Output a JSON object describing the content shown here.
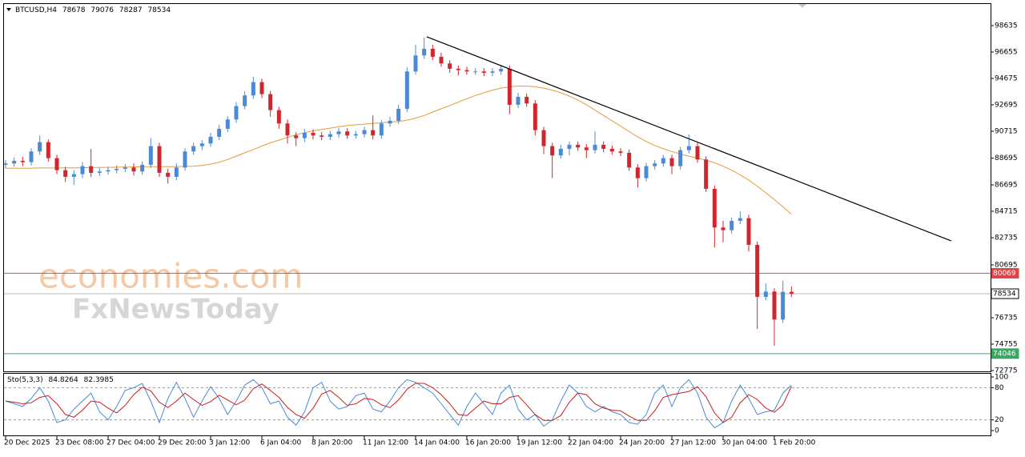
{
  "chart_data": [
    {
      "type": "candlestick",
      "title": "BTCUSD,H4",
      "watermark": [
        "economies.com",
        "FxNewsToday"
      ],
      "categories": [
        "20 Dec 2025",
        null,
        null,
        null,
        null,
        null,
        "23 Dec 08:00",
        null,
        null,
        null,
        null,
        null,
        "27 Dec 04:00",
        null,
        null,
        null,
        null,
        null,
        "29 Dec 20:00",
        null,
        null,
        null,
        null,
        null,
        "3 Jan 12:00",
        null,
        null,
        null,
        null,
        null,
        "6 Jan 04:00",
        null,
        null,
        null,
        null,
        null,
        "8 Jan 20:00",
        null,
        null,
        null,
        null,
        null,
        "11 Jan 12:00",
        null,
        null,
        null,
        null,
        null,
        "14 Jan 04:00",
        null,
        null,
        null,
        null,
        null,
        "16 Jan 20:00",
        null,
        null,
        null,
        null,
        null,
        "19 Jan 12:00",
        null,
        null,
        null,
        null,
        null,
        "22 Jan 04:00",
        null,
        null,
        null,
        null,
        null,
        "24 Jan 20:00",
        null,
        null,
        null,
        null,
        null,
        "27 Jan 12:00",
        null,
        null,
        null,
        null,
        null,
        "30 Jan 04:00",
        null,
        null,
        null,
        null,
        null,
        "1 Feb 20:00",
        null,
        null
      ],
      "open": [
        88200,
        88300,
        88500,
        88400,
        89200,
        89900,
        88700,
        87800,
        87300,
        87500,
        88100,
        87600,
        87700,
        87800,
        87900,
        88000,
        87700,
        88200,
        89600,
        87600,
        87300,
        88000,
        89200,
        89600,
        89800,
        90300,
        90900,
        91600,
        92600,
        93400,
        94400,
        93500,
        92300,
        91300,
        90400,
        90200,
        90600,
        90400,
        90300,
        90500,
        90700,
        90400,
        90500,
        90800,
        90400,
        91300,
        91500,
        92400,
        95200,
        96400,
        96900,
        96300,
        95800,
        95400,
        95300,
        95200,
        95200,
        95100,
        95200,
        95400,
        92700,
        93300,
        92800,
        90800,
        89600,
        88900,
        89400,
        89700,
        89500,
        89300,
        89700,
        89400,
        89200,
        89100,
        88000,
        87200,
        88100,
        88300,
        88700,
        88100,
        89300,
        89600,
        88600,
        86400,
        83500,
        83300,
        84000,
        84200,
        82200,
        78300,
        78700,
        76600,
        78678
      ],
      "high": [
        88550,
        88750,
        88800,
        89450,
        90400,
        90100,
        88950,
        88050,
        87800,
        88400,
        89400,
        87950,
        88050,
        88150,
        88250,
        88300,
        88450,
        90200,
        89850,
        87900,
        88300,
        89450,
        89850,
        90050,
        90600,
        91200,
        91850,
        92900,
        93700,
        94800,
        94650,
        93750,
        92550,
        91600,
        90650,
        90900,
        90850,
        90650,
        90750,
        90950,
        90950,
        90750,
        91050,
        91900,
        91550,
        91800,
        92700,
        95500,
        97200,
        97735,
        97200,
        96600,
        96050,
        95650,
        95550,
        95450,
        95450,
        95450,
        95700,
        95650,
        93600,
        93550,
        93050,
        91050,
        89850,
        89700,
        89950,
        89950,
        89750,
        90700,
        89950,
        89650,
        89450,
        89350,
        88250,
        88350,
        88550,
        88950,
        88950,
        89550,
        90475,
        89850,
        88850,
        86650,
        84000,
        84250,
        84700,
        84450,
        82450,
        79300,
        78950,
        79500,
        79076
      ],
      "low": [
        87950,
        88050,
        88100,
        88150,
        88950,
        88450,
        87500,
        86900,
        86700,
        87200,
        87300,
        87350,
        87450,
        87550,
        87650,
        87400,
        87450,
        87950,
        87300,
        86800,
        87050,
        87750,
        88950,
        89300,
        89550,
        90050,
        90650,
        91350,
        92350,
        93150,
        93200,
        91800,
        90900,
        89800,
        89600,
        89900,
        90100,
        90050,
        90050,
        90250,
        90150,
        90150,
        90250,
        90100,
        90150,
        91050,
        91250,
        92150,
        94950,
        96150,
        96050,
        95550,
        95100,
        94900,
        94950,
        94950,
        94850,
        94850,
        94950,
        92000,
        92450,
        92550,
        90400,
        89000,
        87200,
        88650,
        88900,
        89250,
        88700,
        89050,
        89150,
        88950,
        88850,
        87750,
        86500,
        86950,
        87850,
        88050,
        87500,
        87850,
        89050,
        88350,
        86150,
        82000,
        82400,
        83050,
        83750,
        81700,
        75900,
        78050,
        74635,
        76350,
        78287
      ],
      "close": [
        88300,
        88500,
        88400,
        89200,
        89900,
        88700,
        87800,
        87300,
        87500,
        88100,
        87600,
        87700,
        87800,
        87900,
        88000,
        87700,
        88200,
        89600,
        87600,
        87300,
        88000,
        89200,
        89600,
        89800,
        90300,
        90900,
        91600,
        92600,
        93400,
        94400,
        93500,
        92300,
        91300,
        90400,
        90200,
        90600,
        90400,
        90300,
        90500,
        90700,
        90400,
        90500,
        90800,
        90400,
        91300,
        91500,
        92400,
        95200,
        96400,
        96900,
        96300,
        95800,
        95400,
        95300,
        95200,
        95200,
        95100,
        95200,
        95400,
        92700,
        93300,
        92800,
        90800,
        89600,
        88900,
        89400,
        89700,
        89500,
        89300,
        89700,
        89400,
        89200,
        89100,
        88000,
        87200,
        88100,
        88300,
        88700,
        88100,
        89300,
        89600,
        88600,
        86400,
        83500,
        83300,
        84000,
        84200,
        82200,
        78300,
        78700,
        76600,
        78678,
        78534
      ],
      "up_color": "#4a8ad4",
      "down_color": "#d2262e",
      "ma": {
        "color": "#e89a3c",
        "values": [
          87950,
          87950,
          87950,
          87950,
          87960,
          87960,
          87960,
          87970,
          87970,
          87980,
          87990,
          88000,
          88010,
          88020,
          88030,
          88040,
          88050,
          88060,
          88060,
          88060,
          88070,
          88080,
          88100,
          88150,
          88250,
          88400,
          88600,
          88850,
          89100,
          89350,
          89600,
          89850,
          90050,
          90250,
          90450,
          90600,
          90750,
          90850,
          90950,
          91050,
          91150,
          91200,
          91250,
          91300,
          91350,
          91400,
          91450,
          91550,
          91700,
          91900,
          92150,
          92400,
          92650,
          92900,
          93150,
          93400,
          93600,
          93800,
          93950,
          94050,
          94100,
          94100,
          94050,
          93950,
          93800,
          93600,
          93350,
          93050,
          92700,
          92300,
          91900,
          91500,
          91100,
          90700,
          90300,
          89950,
          89650,
          89400,
          89200,
          89000,
          88850,
          88700,
          88550,
          88350,
          88100,
          87800,
          87450,
          87050,
          86600,
          86100,
          85600,
          85050,
          84500
        ]
      },
      "trendline": {
        "color": "#000000",
        "x": [
          49.3,
          110.7
        ],
        "y": [
          97800,
          82500
        ]
      },
      "hlines": [
        {
          "value": 80069,
          "color": "#e0454a"
        },
        {
          "value": 78534,
          "color": "#b8b8b8"
        },
        {
          "value": 74046,
          "color": "#3aa860"
        }
      ],
      "ylim": [
        72715,
        100315
      ],
      "yticks": [
        98635,
        96655,
        94675,
        92695,
        90715,
        88695,
        86695,
        84715,
        82735,
        80695,
        76735,
        74755,
        72775
      ]
    },
    {
      "type": "line",
      "title": "Sto(5,3,3)",
      "series": [
        {
          "color": "#4a8ad4",
          "values": [
            55,
            50,
            45,
            60,
            80,
            55,
            15,
            20,
            40,
            55,
            70,
            35,
            20,
            45,
            75,
            80,
            88,
            55,
            15,
            60,
            90,
            60,
            25,
            55,
            82,
            60,
            30,
            55,
            85,
            95,
            80,
            50,
            55,
            25,
            10,
            35,
            80,
            90,
            55,
            40,
            45,
            65,
            70,
            40,
            35,
            55,
            80,
            95,
            90,
            80,
            70,
            50,
            30,
            10,
            45,
            70,
            50,
            30,
            70,
            85,
            40,
            20,
            30,
            8,
            20,
            55,
            85,
            70,
            45,
            35,
            45,
            35,
            30,
            15,
            12,
            30,
            70,
            85,
            45,
            80,
            95,
            70,
            25,
            5,
            15,
            55,
            85,
            60,
            30,
            35,
            38,
            70,
            84.8264
          ]
        },
        {
          "color": "#c81e1e",
          "values": [
            55,
            53,
            50,
            52,
            62,
            65,
            50,
            30,
            25,
            38,
            55,
            53,
            42,
            33,
            47,
            67,
            81,
            74,
            53,
            43,
            55,
            70,
            58,
            47,
            54,
            66,
            57,
            48,
            57,
            78,
            87,
            75,
            62,
            43,
            30,
            23,
            42,
            68,
            75,
            62,
            47,
            50,
            60,
            58,
            48,
            43,
            57,
            77,
            88,
            88,
            80,
            67,
            50,
            30,
            28,
            42,
            55,
            50,
            50,
            62,
            65,
            48,
            30,
            19,
            19,
            28,
            53,
            70,
            67,
            50,
            42,
            38,
            37,
            27,
            19,
            19,
            37,
            62,
            67,
            70,
            73,
            82,
            63,
            33,
            15,
            25,
            52,
            67,
            58,
            42,
            34,
            48,
            82.3985
          ]
        }
      ],
      "levels": [
        80,
        20
      ],
      "ylim": [
        0,
        100
      ],
      "yticks": [
        100,
        80,
        20,
        0
      ]
    }
  ]
}
